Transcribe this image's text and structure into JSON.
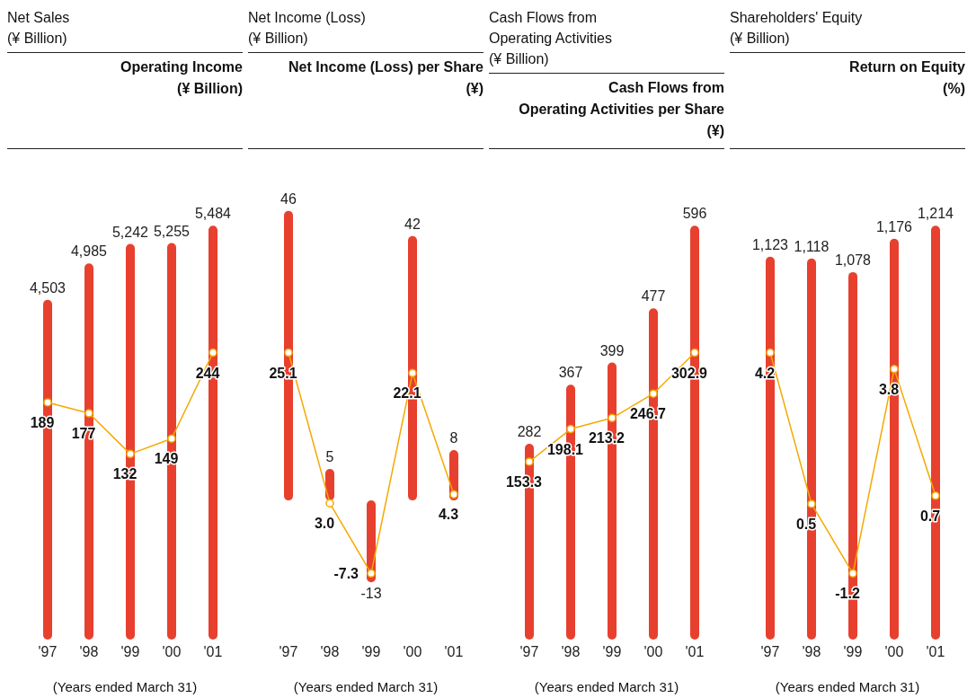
{
  "chart_data": [
    {
      "type": "bar",
      "title": "Net Sales\n(¥ Billion)",
      "y2label": "Operating Income\n(¥ Billion)",
      "xlabel": "(Years ended March 31)",
      "categories": [
        "'97",
        "'98",
        "'99",
        "'00",
        "'01"
      ],
      "marker": "circle",
      "series": [
        {
          "color": "#e8402e",
          "values": [
            4503,
            4985,
            5242,
            5255,
            5484
          ],
          "value_labels": [
            "4,503",
            "4,985",
            "5,242",
            "5,255",
            "5,484"
          ]
        },
        {
          "type": "line",
          "axis": "y2",
          "color": "#f5a800",
          "values": [
            189,
            177,
            132,
            149,
            244
          ],
          "value_labels": [
            "189",
            "177",
            "132",
            "149",
            "244"
          ]
        }
      ]
    },
    {
      "type": "bar",
      "title": "Net Income (Loss)\n(¥ Billion)",
      "y2label": "Net Income (Loss) per Share\n(¥)",
      "xlabel": "(Years ended March 31)",
      "categories": [
        "'97",
        "'98",
        "'99",
        "'00",
        "'01"
      ],
      "marker": "circle",
      "series": [
        {
          "color": "#e8402e",
          "values": [
            46,
            5,
            -13,
            42,
            8
          ],
          "value_labels": [
            "46",
            "5",
            "-13",
            "42",
            "8"
          ]
        },
        {
          "type": "line",
          "axis": "y2",
          "color": "#f5a800",
          "values": [
            25.1,
            3.0,
            -7.3,
            22.1,
            4.3
          ],
          "value_labels": [
            "25.1",
            "3.0",
            "-7.3",
            "22.1",
            "4.3"
          ]
        }
      ]
    },
    {
      "type": "bar",
      "title": "Cash Flows from\nOperating Activities\n(¥ Billion)",
      "y2label": "Cash Flows from\nOperating Activities per Share\n(¥)",
      "xlabel": "(Years ended March 31)",
      "categories": [
        "'97",
        "'98",
        "'99",
        "'00",
        "'01"
      ],
      "marker": "circle",
      "series": [
        {
          "color": "#e8402e",
          "values": [
            282,
            367,
            399,
            477,
            596
          ],
          "value_labels": [
            "282",
            "367",
            "399",
            "477",
            "596"
          ]
        },
        {
          "type": "line",
          "axis": "y2",
          "color": "#f5a800",
          "values": [
            153.3,
            198.1,
            213.2,
            246.7,
            302.9
          ],
          "value_labels": [
            "153.3",
            "198.1",
            "213.2",
            "246.7",
            "302.9"
          ]
        }
      ]
    },
    {
      "type": "bar",
      "title": "Shareholders' Equity\n(¥ Billion)",
      "y2label": "Return on Equity\n(%)",
      "xlabel": "(Years ended March 31)",
      "categories": [
        "'97",
        "'98",
        "'99",
        "'00",
        "'01"
      ],
      "marker": "circle",
      "series": [
        {
          "color": "#e8402e",
          "values": [
            1123,
            1118,
            1078,
            1176,
            1214
          ],
          "value_labels": [
            "1,123",
            "1,118",
            "1,078",
            "1,176",
            "1,214"
          ]
        },
        {
          "type": "line",
          "axis": "y2",
          "color": "#f5a800",
          "values": [
            4.2,
            0.5,
            -1.2,
            3.8,
            0.7
          ],
          "value_labels": [
            "4.2",
            "0.5",
            "-1.2",
            "3.8",
            "0.7"
          ]
        }
      ]
    }
  ]
}
